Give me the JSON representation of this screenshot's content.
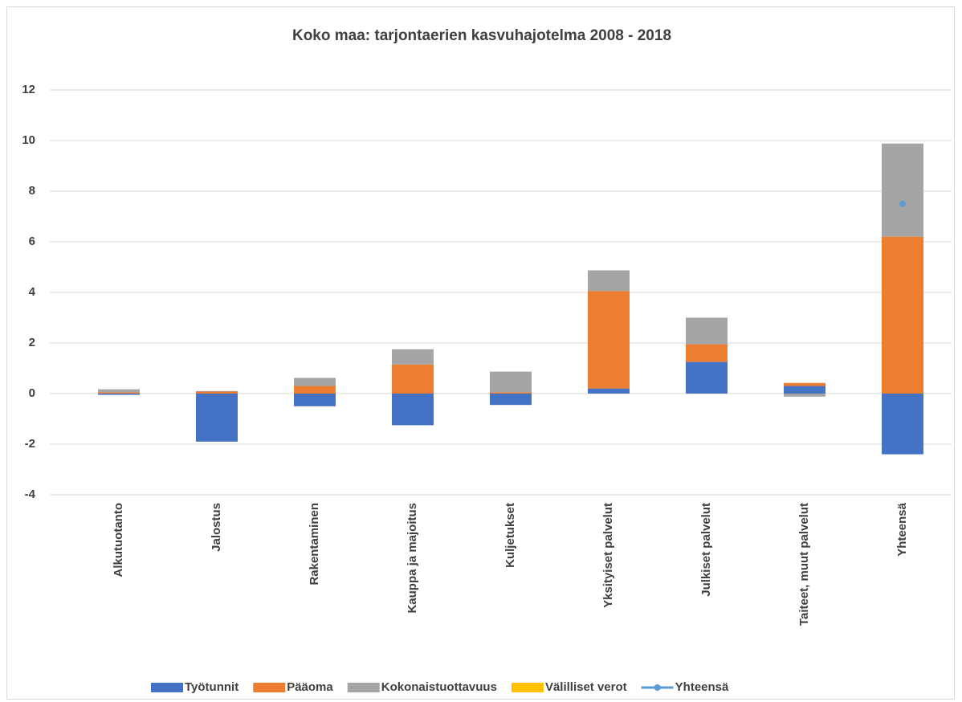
{
  "chart_data": {
    "type": "stacked_bar",
    "title": "Koko maa: tarjontaerien kasvuhajotelma 2008 - 2018",
    "categories": [
      "Alkutuotanto",
      "Jalostus",
      "Rakentaminen",
      "Kauppa ja majoitus",
      "Kuljetukset",
      "Yksityiset palvelut",
      "Julkiset palvelut",
      "Taiteet, muut palvelut",
      "Yhteensä"
    ],
    "series": [
      {
        "name": "Työtunnit",
        "color": "#4472c4",
        "values": [
          -0.05,
          -1.9,
          -0.5,
          -1.25,
          -0.45,
          0.2,
          1.25,
          0.3,
          -2.4
        ]
      },
      {
        "name": "Pääoma",
        "color": "#ed7d31",
        "values": [
          0.05,
          0.08,
          0.3,
          1.15,
          0.05,
          3.85,
          0.7,
          0.12,
          6.2
        ]
      },
      {
        "name": "Kokonaistuottavuus",
        "color": "#a5a5a5",
        "values": [
          0.12,
          0.02,
          0.32,
          0.6,
          0.82,
          0.82,
          1.05,
          -0.12,
          3.68
        ]
      },
      {
        "name": "Välilliset verot",
        "color": "#ffc000",
        "values": [
          0,
          0,
          0,
          0,
          0,
          0,
          0,
          0,
          0
        ]
      },
      {
        "name": "Yhteensä",
        "color": "#5b9bd5",
        "type": "line",
        "values": [
          null,
          null,
          null,
          null,
          null,
          null,
          null,
          null,
          7.5
        ]
      }
    ],
    "ylim": [
      -4,
      12
    ],
    "yticks": [
      -4,
      -2,
      0,
      2,
      4,
      6,
      8,
      10,
      12
    ],
    "grid": true,
    "legend": "bottom"
  }
}
